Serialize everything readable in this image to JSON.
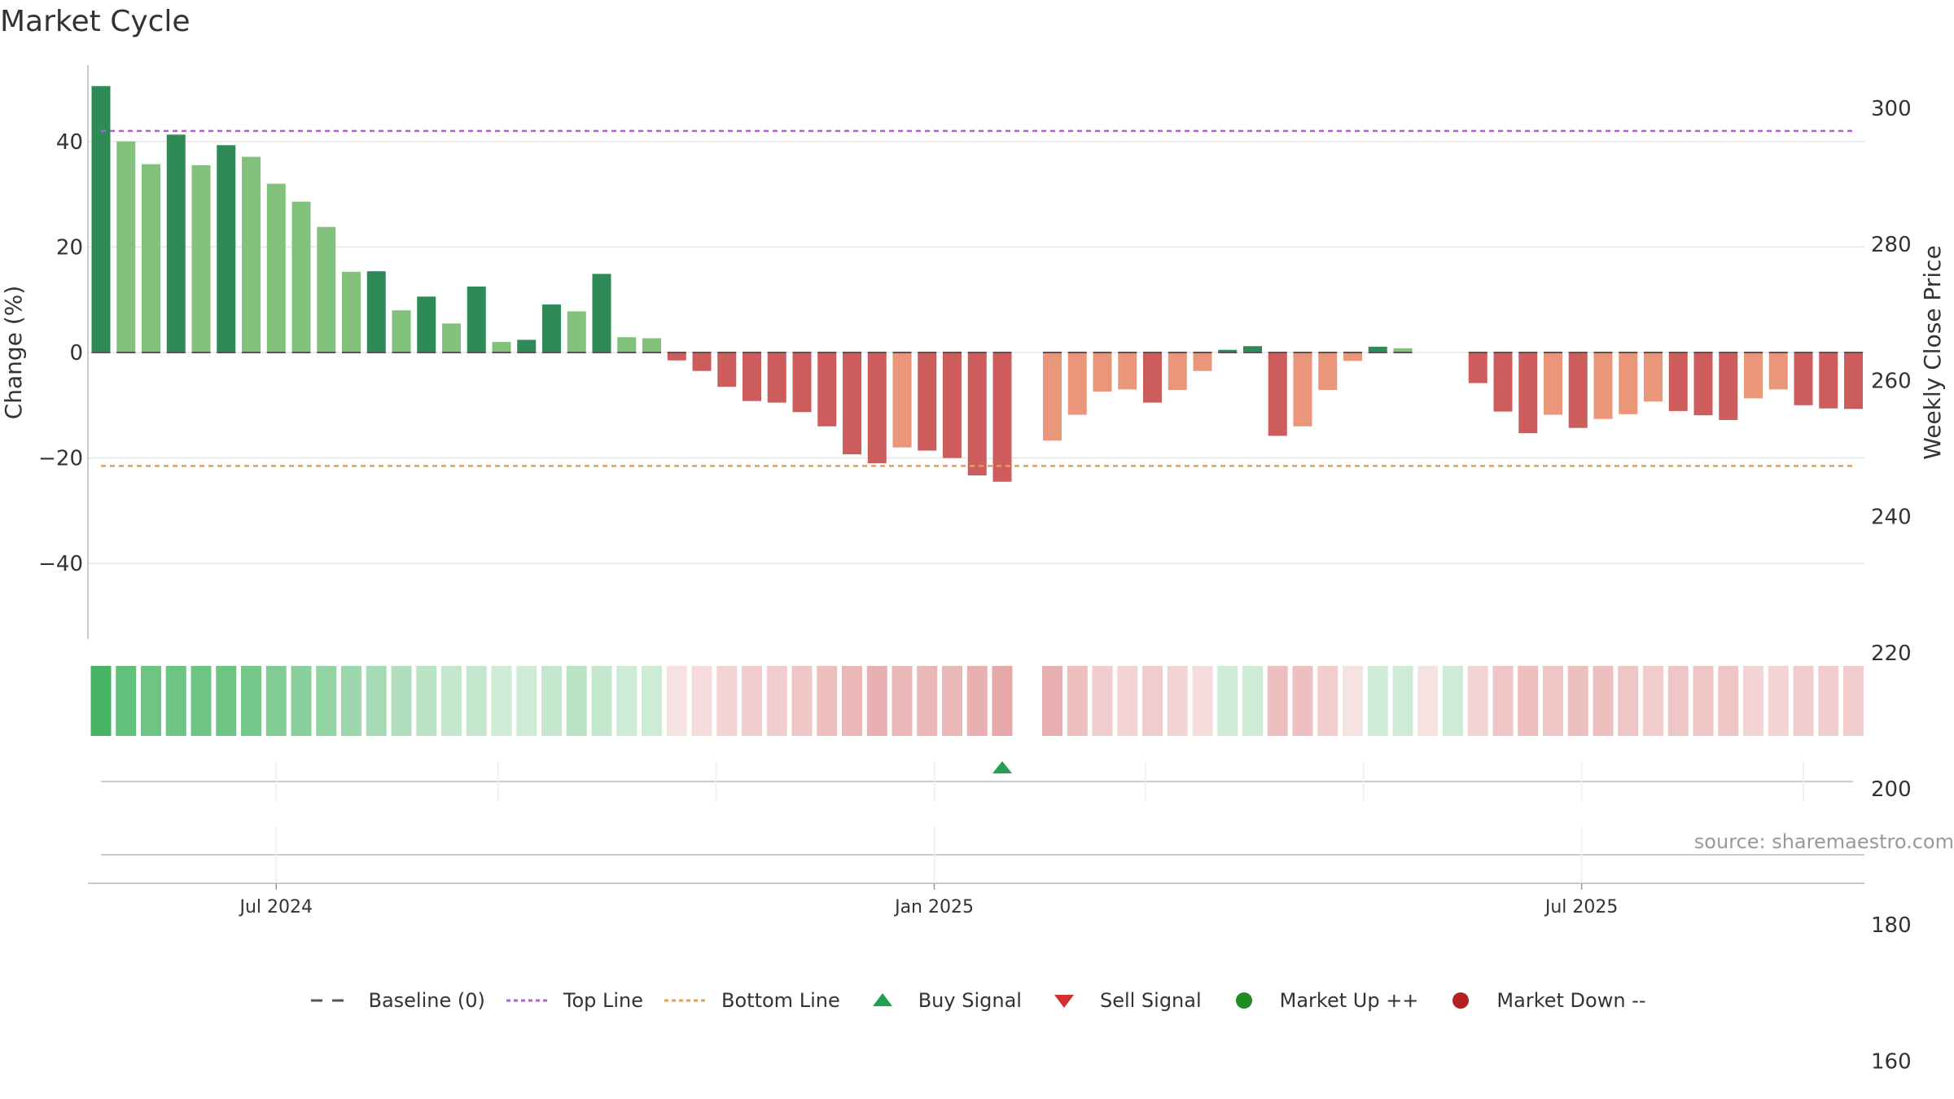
{
  "colors": {
    "up_strong": "#2e8b57",
    "up_light": "#82c27d",
    "down_strong": "#cd5c5c",
    "down_light": "#e9967a",
    "top_line": "#b060d0",
    "bottom_line": "#e0a050",
    "buy": "#22a052",
    "sell": "#d03030",
    "market_up": "#228b22",
    "market_down": "#b22222",
    "grid": "#e6e6e6",
    "heat_green": "#3cb05a",
    "heat_red": "#d67070"
  },
  "chart_data": {
    "type": "bar",
    "title": "Market Cycle",
    "ylabel": "Change (%)",
    "y2label": "Weekly Close Price",
    "ylim": [
      -55,
      55
    ],
    "yticks": [
      "40",
      "20",
      "0",
      "−20",
      "−40"
    ],
    "y2lim": [
      145,
      310
    ],
    "y2ticks": [
      "300",
      "280",
      "260",
      "240",
      "220",
      "200",
      "180",
      "160"
    ],
    "xticks": [
      "Jul 2024",
      "Jan 2025",
      "Jul 2025"
    ],
    "x": [
      "2024-05-13",
      "2024-05-20",
      "2024-05-27",
      "2024-06-03",
      "2024-06-10",
      "2024-06-17",
      "2024-06-24",
      "2024-07-01",
      "2024-07-08",
      "2024-07-15",
      "2024-07-22",
      "2024-07-29",
      "2024-08-05",
      "2024-08-12",
      "2024-08-19",
      "2024-08-26",
      "2024-09-02",
      "2024-09-09",
      "2024-09-16",
      "2024-09-23",
      "2024-09-30",
      "2024-10-07",
      "2024-10-14",
      "2024-10-21",
      "2024-10-28",
      "2024-11-04",
      "2024-11-11",
      "2024-11-18",
      "2024-11-25",
      "2024-12-02",
      "2024-12-09",
      "2024-12-16",
      "2024-12-23",
      "2024-12-30",
      "2025-01-06",
      "2025-01-13",
      "2025-01-20",
      "2025-01-27",
      "2025-02-03",
      "2025-02-10",
      "2025-02-17",
      "2025-02-24",
      "2025-03-03",
      "2025-03-10",
      "2025-03-17",
      "2025-03-24",
      "2025-03-31",
      "2025-04-07",
      "2025-04-14",
      "2025-04-21",
      "2025-04-28",
      "2025-05-05",
      "2025-05-12",
      "2025-05-19",
      "2025-05-26",
      "2025-06-02",
      "2025-06-09",
      "2025-06-16",
      "2025-06-23",
      "2025-06-30",
      "2025-07-07",
      "2025-07-14",
      "2025-07-21",
      "2025-07-28",
      "2025-08-04",
      "2025-08-11",
      "2025-08-18",
      "2025-08-25",
      "2025-09-01",
      "2025-09-08",
      "2025-09-15"
    ],
    "values": [
      50.5,
      40,
      35.7,
      41.3,
      35.5,
      39.3,
      37.1,
      32,
      28.6,
      23.8,
      15.3,
      15.4,
      8,
      10.6,
      5.5,
      12.5,
      2,
      2.4,
      9.1,
      7.8,
      14.9,
      2.9,
      2.7,
      -1.5,
      -3.5,
      -6.5,
      -9.2,
      -9.5,
      -11.3,
      -14,
      -19.3,
      -21,
      -18,
      -18.6,
      -20,
      -23.3,
      -24.5,
      null,
      -16.7,
      -11.8,
      -7.4,
      -7,
      -9.5,
      -7.1,
      -3.5,
      0.5,
      1.2,
      -15.8,
      -14,
      -7.1,
      -1.6,
      1.1,
      0.8,
      null,
      null,
      -5.8,
      -11.2,
      -15.3,
      -11.8,
      -14.3,
      -12.6,
      -11.7,
      -9.3,
      -11.1,
      -11.9,
      -12.8,
      -8.7,
      -7,
      -10,
      -10.6,
      -10.7
    ],
    "strength": [
      "s",
      "l",
      "l",
      "s",
      "l",
      "s",
      "l",
      "l",
      "l",
      "l",
      "l",
      "s",
      "l",
      "s",
      "l",
      "s",
      "l",
      "s",
      "s",
      "l",
      "s",
      "l",
      "l",
      "s",
      "s",
      "s",
      "s",
      "s",
      "s",
      "s",
      "s",
      "s",
      "l",
      "s",
      "s",
      "s",
      "s",
      "",
      "l",
      "l",
      "l",
      "l",
      "s",
      "l",
      "l",
      "s",
      "s",
      "s",
      "l",
      "l",
      "l",
      "s",
      "l",
      "",
      "",
      "s",
      "s",
      "s",
      "l",
      "s",
      "l",
      "l",
      "l",
      "s",
      "s",
      "s",
      "l",
      "l",
      "s",
      "s",
      "s"
    ],
    "heat": [
      0.95,
      0.8,
      0.75,
      0.75,
      0.75,
      0.75,
      0.7,
      0.65,
      0.6,
      0.55,
      0.5,
      0.45,
      0.4,
      0.35,
      0.3,
      0.3,
      0.25,
      0.25,
      0.3,
      0.35,
      0.3,
      0.25,
      0.25,
      -0.2,
      -0.25,
      -0.3,
      -0.35,
      -0.35,
      -0.4,
      -0.45,
      -0.5,
      -0.55,
      -0.5,
      -0.5,
      -0.5,
      -0.55,
      -0.6,
      null,
      -0.55,
      -0.45,
      -0.35,
      -0.3,
      -0.35,
      -0.3,
      -0.25,
      0.25,
      0.25,
      -0.45,
      -0.45,
      -0.35,
      -0.2,
      0.25,
      0.25,
      -0.2,
      0.25,
      -0.3,
      -0.4,
      -0.45,
      -0.4,
      -0.45,
      -0.45,
      -0.4,
      -0.35,
      -0.4,
      -0.4,
      -0.4,
      -0.3,
      -0.3,
      -0.35,
      -0.35,
      -0.35
    ],
    "top_line": 42,
    "bottom_line": -21.5,
    "buy_signals": [
      "2025-01-20"
    ],
    "sell_signals": [],
    "grid": true,
    "legend_position": "bottom-center"
  },
  "legend": {
    "baseline": "Baseline (0)",
    "top_line": "Top Line",
    "bottom_line": "Bottom Line",
    "buy_signal": "Buy Signal",
    "sell_signal": "Sell Signal",
    "market_up": "Market Up ++",
    "market_down": "Market Down --"
  },
  "source": "source: sharemaestro.com"
}
